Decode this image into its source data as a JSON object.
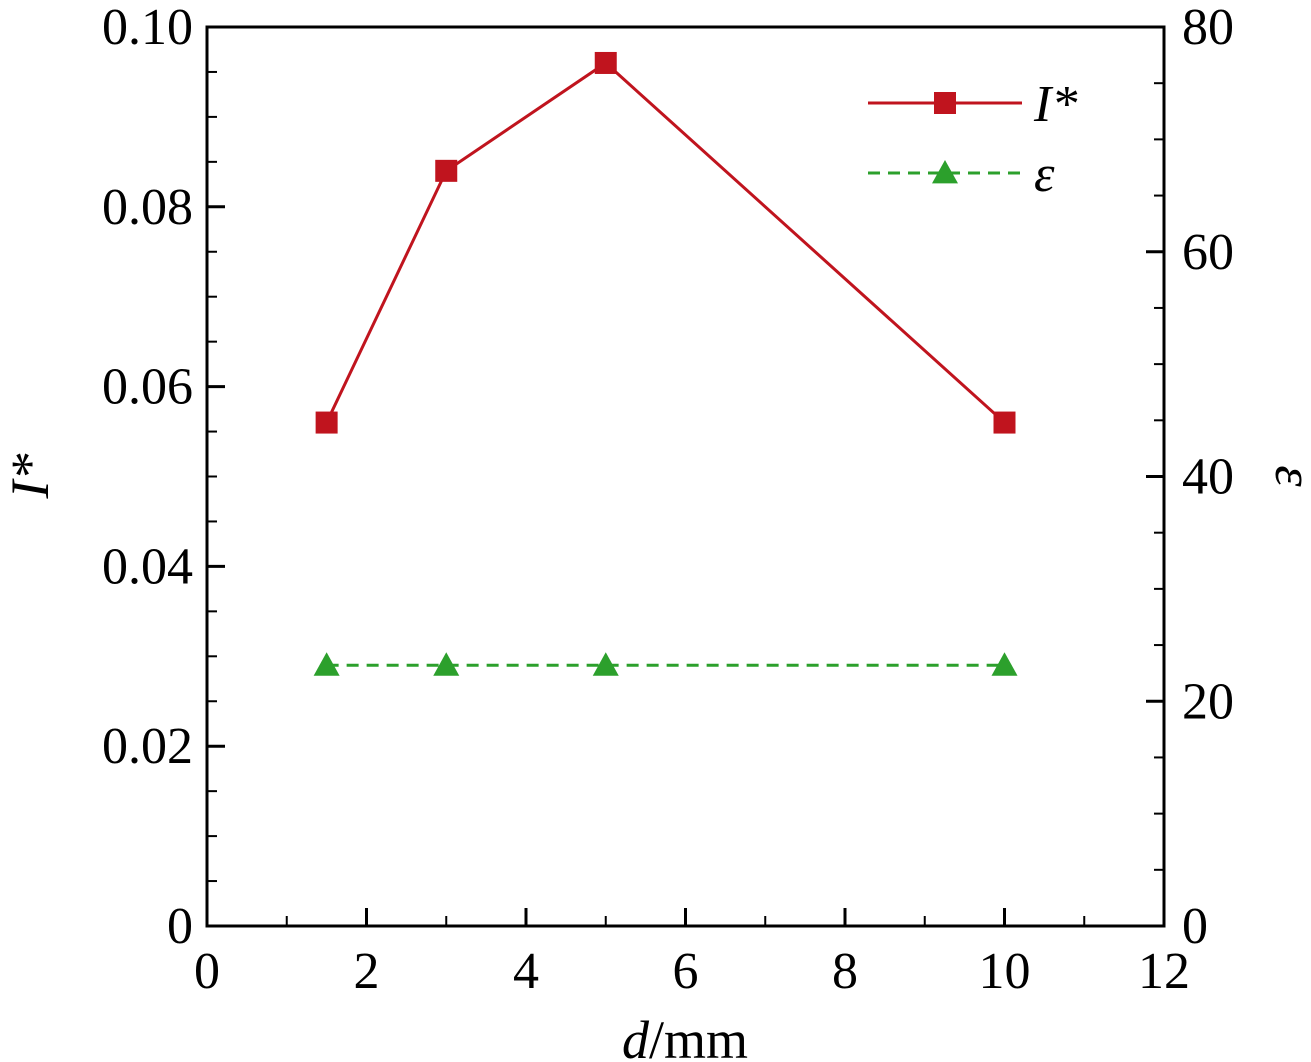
{
  "chart_data": {
    "type": "line",
    "x": [
      1.5,
      3,
      5,
      10
    ],
    "xlabel_var": "d",
    "xlabel_unit": "/mm",
    "xlim": [
      0,
      12
    ],
    "xticks": [
      0,
      2,
      4,
      6,
      8,
      10,
      12
    ],
    "xtick_labels": [
      "0",
      "2",
      "4",
      "6",
      "8",
      "10",
      "12"
    ],
    "ylabel_left": "I*",
    "ylim_left": [
      0,
      0.1
    ],
    "yticks_left": [
      0,
      0.02,
      0.04,
      0.06,
      0.08,
      0.1
    ],
    "ytick_labels_left": [
      "0",
      "0.02",
      "0.04",
      "0.06",
      "0.08",
      "0.10"
    ],
    "ylabel_right": "ε",
    "ylim_right": [
      0,
      80
    ],
    "yticks_right": [
      0,
      20,
      40,
      60,
      80
    ],
    "ytick_labels_right": [
      "0",
      "20",
      "40",
      "60",
      "80"
    ],
    "grid": false,
    "legend_position": "top-right",
    "series": [
      {
        "name": "I*",
        "axis": "left",
        "values": [
          0.056,
          0.084,
          0.096,
          0.056
        ],
        "color": "#c0141e",
        "marker": "square",
        "line": "solid"
      },
      {
        "name": "ε",
        "axis": "right",
        "values": [
          23.2,
          23.2,
          23.2,
          23.2
        ],
        "color": "#2ca02c",
        "marker": "triangle",
        "line": "dashed"
      }
    ]
  }
}
